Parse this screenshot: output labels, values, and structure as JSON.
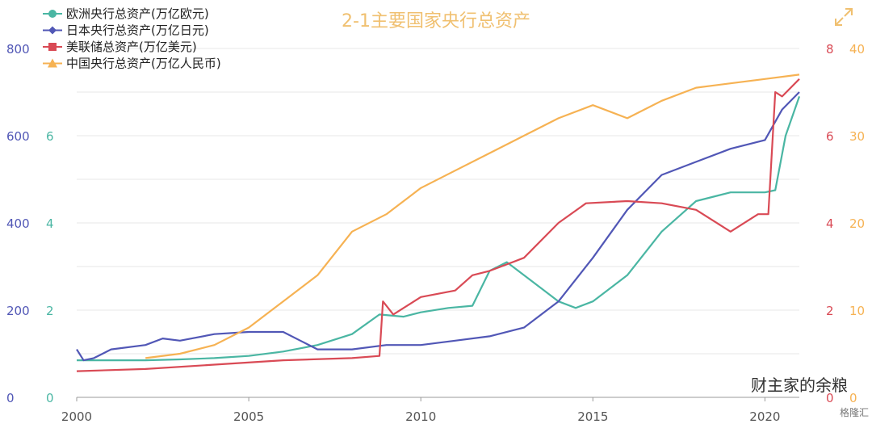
{
  "chart_data": {
    "type": "line",
    "title": "2-1主要国家央行总资产",
    "colors": {
      "ecb": "#4ab6a3",
      "boj": "#5157b6",
      "fed": "#d94a55",
      "pboc": "#f6b253",
      "title": "#f0c070",
      "grid": "#e7e7e7"
    },
    "x_ticks": [
      2000,
      2005,
      2010,
      2015,
      2020
    ],
    "xlim": [
      2000,
      2021
    ],
    "axes": {
      "left_boj": {
        "ticks": [
          0,
          200,
          400,
          600,
          800
        ],
        "ylim": [
          0,
          800
        ]
      },
      "left_ecb": {
        "ticks": [
          0,
          2,
          4,
          6
        ],
        "ylim": [
          0,
          8
        ]
      },
      "right_fed": {
        "ticks": [
          0,
          2,
          4,
          6,
          8
        ],
        "ylim": [
          0,
          8
        ]
      },
      "right_pboc": {
        "ticks": [
          0,
          10,
          20,
          30,
          40
        ],
        "ylim": [
          0,
          40
        ]
      }
    },
    "legend_position": "top-left",
    "series": [
      {
        "name": "欧洲央行总资产(万亿欧元)",
        "key": "ecb",
        "axis": "left_ecb",
        "marker": "circle",
        "points": [
          [
            2000,
            0.85
          ],
          [
            2001,
            0.85
          ],
          [
            2002,
            0.85
          ],
          [
            2003,
            0.87
          ],
          [
            2004,
            0.9
          ],
          [
            2005,
            0.95
          ],
          [
            2006,
            1.05
          ],
          [
            2007,
            1.2
          ],
          [
            2008,
            1.45
          ],
          [
            2008.8,
            1.9
          ],
          [
            2009.5,
            1.85
          ],
          [
            2010,
            1.95
          ],
          [
            2010.8,
            2.05
          ],
          [
            2011.5,
            2.1
          ],
          [
            2012,
            2.9
          ],
          [
            2012.5,
            3.1
          ],
          [
            2013,
            2.8
          ],
          [
            2013.5,
            2.5
          ],
          [
            2014,
            2.2
          ],
          [
            2014.5,
            2.05
          ],
          [
            2015,
            2.2
          ],
          [
            2016,
            2.8
          ],
          [
            2017,
            3.8
          ],
          [
            2018,
            4.5
          ],
          [
            2019,
            4.7
          ],
          [
            2020,
            4.7
          ],
          [
            2020.3,
            4.75
          ],
          [
            2020.6,
            6.0
          ],
          [
            2021,
            6.9
          ]
        ]
      },
      {
        "name": "日本央行总资产(万亿日元)",
        "key": "boj",
        "axis": "left_boj",
        "marker": "diamond",
        "points": [
          [
            2000,
            110
          ],
          [
            2000.2,
            85
          ],
          [
            2000.5,
            90
          ],
          [
            2001,
            110
          ],
          [
            2002,
            120
          ],
          [
            2002.5,
            135
          ],
          [
            2003,
            130
          ],
          [
            2004,
            145
          ],
          [
            2005,
            150
          ],
          [
            2006,
            150
          ],
          [
            2006.5,
            130
          ],
          [
            2007,
            110
          ],
          [
            2008,
            110
          ],
          [
            2009,
            120
          ],
          [
            2010,
            120
          ],
          [
            2011,
            130
          ],
          [
            2012,
            140
          ],
          [
            2013,
            160
          ],
          [
            2014,
            220
          ],
          [
            2015,
            320
          ],
          [
            2016,
            430
          ],
          [
            2017,
            510
          ],
          [
            2018,
            540
          ],
          [
            2019,
            570
          ],
          [
            2020,
            590
          ],
          [
            2020.5,
            660
          ],
          [
            2021,
            700
          ]
        ]
      },
      {
        "name": "美联储总资产(万亿美元)",
        "key": "fed",
        "axis": "right_fed",
        "marker": "square",
        "points": [
          [
            2000,
            0.6
          ],
          [
            2002,
            0.65
          ],
          [
            2004,
            0.75
          ],
          [
            2006,
            0.85
          ],
          [
            2008,
            0.9
          ],
          [
            2008.8,
            0.95
          ],
          [
            2008.9,
            2.2
          ],
          [
            2009.2,
            1.9
          ],
          [
            2010,
            2.3
          ],
          [
            2011,
            2.45
          ],
          [
            2011.5,
            2.8
          ],
          [
            2012,
            2.9
          ],
          [
            2013,
            3.2
          ],
          [
            2014,
            4.0
          ],
          [
            2014.8,
            4.45
          ],
          [
            2016,
            4.5
          ],
          [
            2017,
            4.45
          ],
          [
            2018,
            4.3
          ],
          [
            2019,
            3.8
          ],
          [
            2019.8,
            4.2
          ],
          [
            2020.1,
            4.2
          ],
          [
            2020.3,
            7.0
          ],
          [
            2020.5,
            6.9
          ],
          [
            2021,
            7.3
          ]
        ]
      },
      {
        "name": "中国央行总资产(万亿人民币)",
        "key": "pboc",
        "axis": "right_pboc",
        "marker": "triangle",
        "points": [
          [
            2002,
            4.5
          ],
          [
            2003,
            5.0
          ],
          [
            2004,
            6.0
          ],
          [
            2005,
            8.0
          ],
          [
            2006,
            11.0
          ],
          [
            2007,
            14.0
          ],
          [
            2008,
            19.0
          ],
          [
            2009,
            21.0
          ],
          [
            2010,
            24.0
          ],
          [
            2011,
            26.0
          ],
          [
            2012,
            28.0
          ],
          [
            2013,
            30.0
          ],
          [
            2014,
            32.0
          ],
          [
            2015,
            33.5
          ],
          [
            2016,
            32.0
          ],
          [
            2017,
            34.0
          ],
          [
            2018,
            35.5
          ],
          [
            2019,
            36.0
          ],
          [
            2020,
            36.5
          ],
          [
            2021,
            37.0
          ]
        ]
      }
    ]
  },
  "watermark": {
    "main": "财主家的余粮",
    "corner": "格隆汇"
  }
}
